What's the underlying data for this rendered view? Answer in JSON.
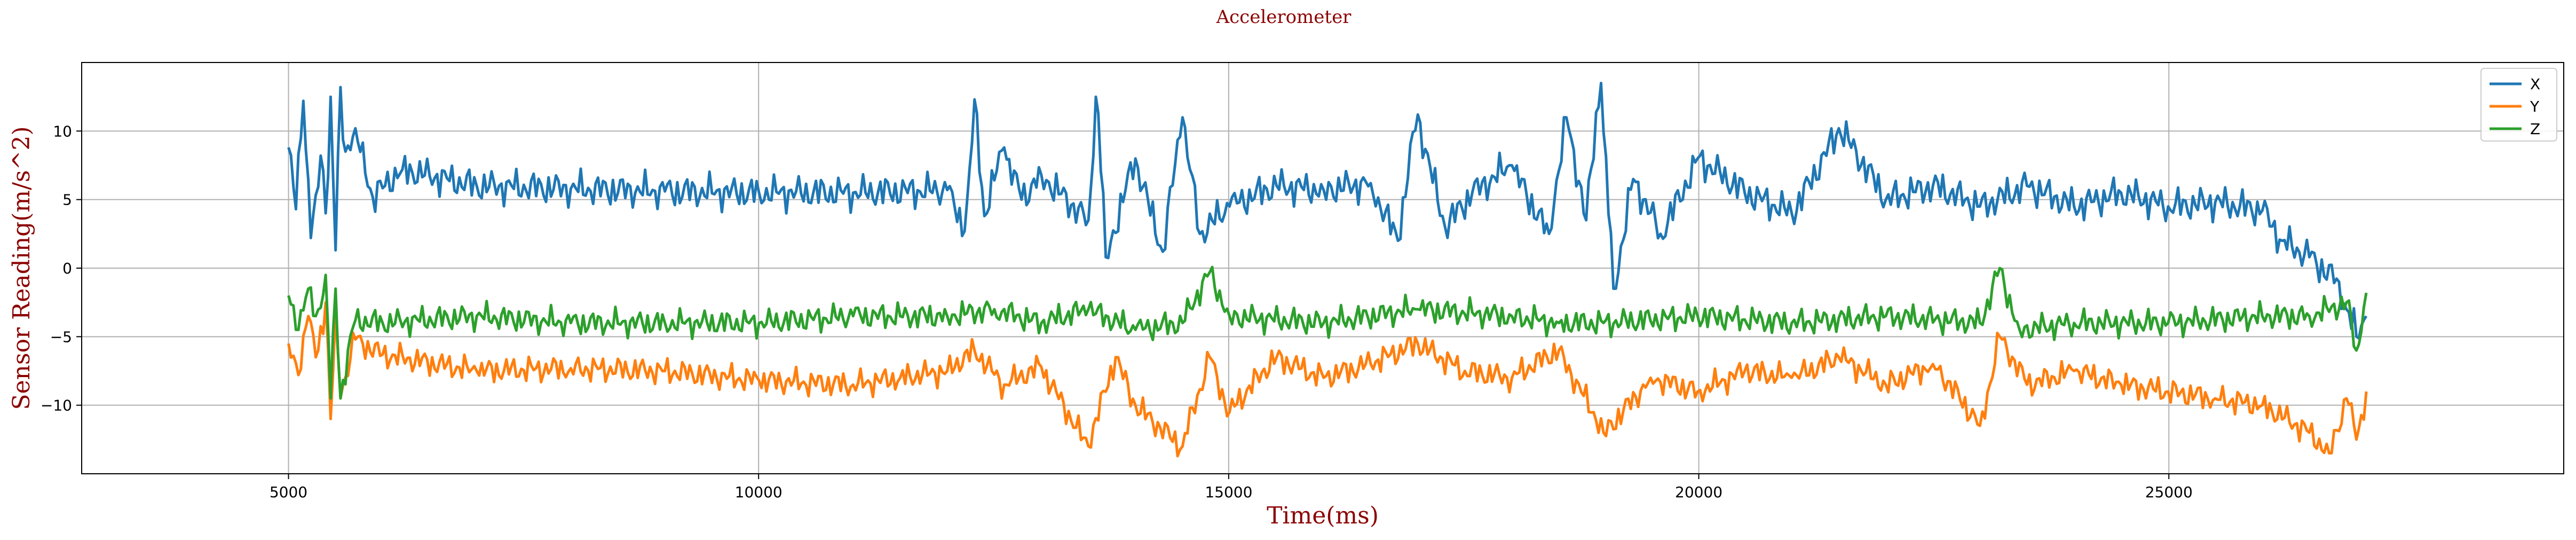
{
  "chart_data": {
    "type": "line",
    "title": "Accelerometer",
    "xlabel": "Time(ms)",
    "ylabel": "Sensor Reading(m/s^2)",
    "xlim": [
      2800,
      29200
    ],
    "ylim": [
      -15,
      15
    ],
    "xticks": [
      5000,
      10000,
      15000,
      20000,
      25000
    ],
    "yticks": [
      -10,
      -5,
      0,
      5,
      10
    ],
    "grid": true,
    "legend_position": "top-right",
    "sample_count": 840,
    "series": [
      {
        "name": "X",
        "color": "#1f77b4",
        "keypoints": [
          [
            5000,
            8.8
          ],
          [
            5080,
            4.3
          ],
          [
            5150,
            12.2
          ],
          [
            5250,
            2.2
          ],
          [
            5350,
            8.2
          ],
          [
            5400,
            4.0
          ],
          [
            5450,
            12.5
          ],
          [
            5500,
            1.3
          ],
          [
            5550,
            13.2
          ],
          [
            5600,
            8.5
          ],
          [
            5700,
            10.2
          ],
          [
            5900,
            5.2
          ],
          [
            6200,
            7.2
          ],
          [
            7000,
            6.0
          ],
          [
            8000,
            5.8
          ],
          [
            9000,
            5.6
          ],
          [
            10000,
            5.5
          ],
          [
            11000,
            5.5
          ],
          [
            12000,
            5.7
          ],
          [
            12200,
            2.7
          ],
          [
            12300,
            12.3
          ],
          [
            12400,
            3.8
          ],
          [
            12600,
            8.8
          ],
          [
            12800,
            5.0
          ],
          [
            13000,
            6.8
          ],
          [
            13500,
            3.5
          ],
          [
            13600,
            12.5
          ],
          [
            13700,
            0.8
          ],
          [
            14000,
            8.0
          ],
          [
            14300,
            1.2
          ],
          [
            14500,
            11.0
          ],
          [
            14700,
            2.5
          ],
          [
            15000,
            4.5
          ],
          [
            15500,
            6.0
          ],
          [
            16000,
            5.7
          ],
          [
            16500,
            6.2
          ],
          [
            16800,
            2.0
          ],
          [
            17000,
            11.2
          ],
          [
            17300,
            3.0
          ],
          [
            17600,
            5.5
          ],
          [
            18000,
            7.5
          ],
          [
            18400,
            2.5
          ],
          [
            18600,
            11.0
          ],
          [
            18800,
            3.5
          ],
          [
            18950,
            13.5
          ],
          [
            19100,
            -1.5
          ],
          [
            19300,
            6.5
          ],
          [
            19600,
            2.5
          ],
          [
            20000,
            8.0
          ],
          [
            20500,
            5.5
          ],
          [
            21000,
            4.0
          ],
          [
            21500,
            10.2
          ],
          [
            22000,
            5.0
          ],
          [
            22500,
            6.0
          ],
          [
            23000,
            4.5
          ],
          [
            23500,
            6.0
          ],
          [
            24000,
            4.5
          ],
          [
            24500,
            5.5
          ],
          [
            25000,
            4.5
          ],
          [
            25500,
            4.8
          ],
          [
            26000,
            4.2
          ],
          [
            26200,
            2.0
          ],
          [
            26500,
            0.8
          ],
          [
            26800,
            -1.0
          ],
          [
            26900,
            -3.0
          ],
          [
            27000,
            -5.0
          ],
          [
            27100,
            -3.5
          ]
        ]
      },
      {
        "name": "Y",
        "color": "#ff7f0e",
        "keypoints": [
          [
            5000,
            -5.5
          ],
          [
            5100,
            -7.8
          ],
          [
            5200,
            -3.5
          ],
          [
            5300,
            -6.5
          ],
          [
            5400,
            -2.5
          ],
          [
            5450,
            -11.0
          ],
          [
            5500,
            -3.0
          ],
          [
            5550,
            -9.5
          ],
          [
            5700,
            -5.2
          ],
          [
            6000,
            -6.3
          ],
          [
            7000,
            -7.5
          ],
          [
            8000,
            -7.3
          ],
          [
            9000,
            -7.5
          ],
          [
            10000,
            -8.2
          ],
          [
            11000,
            -8.5
          ],
          [
            11500,
            -8.0
          ],
          [
            12000,
            -7.5
          ],
          [
            12300,
            -6.0
          ],
          [
            12600,
            -8.5
          ],
          [
            13000,
            -7.2
          ],
          [
            13500,
            -13.0
          ],
          [
            13800,
            -6.5
          ],
          [
            14000,
            -10.0
          ],
          [
            14500,
            -13.0
          ],
          [
            14800,
            -6.5
          ],
          [
            15000,
            -10.5
          ],
          [
            15500,
            -6.5
          ],
          [
            16000,
            -8.0
          ],
          [
            16500,
            -7.0
          ],
          [
            17000,
            -5.5
          ],
          [
            17500,
            -7.5
          ],
          [
            18000,
            -8.0
          ],
          [
            18500,
            -6.0
          ],
          [
            19000,
            -12.0
          ],
          [
            19500,
            -8.0
          ],
          [
            20000,
            -9.0
          ],
          [
            20500,
            -7.5
          ],
          [
            21000,
            -8.0
          ],
          [
            21500,
            -6.5
          ],
          [
            22000,
            -8.5
          ],
          [
            22500,
            -7.0
          ],
          [
            23000,
            -11.5
          ],
          [
            23200,
            -5.0
          ],
          [
            23500,
            -8.5
          ],
          [
            24000,
            -7.5
          ],
          [
            24500,
            -8.5
          ],
          [
            25000,
            -9.0
          ],
          [
            25500,
            -9.5
          ],
          [
            26000,
            -10.0
          ],
          [
            26500,
            -12.0
          ],
          [
            26700,
            -13.5
          ],
          [
            26900,
            -9.5
          ],
          [
            27000,
            -12.5
          ],
          [
            27100,
            -9.0
          ]
        ]
      },
      {
        "name": "Z",
        "color": "#2ca02c",
        "keypoints": [
          [
            5000,
            -2.0
          ],
          [
            5100,
            -4.5
          ],
          [
            5200,
            -1.5
          ],
          [
            5300,
            -3.5
          ],
          [
            5400,
            -0.5
          ],
          [
            5450,
            -9.5
          ],
          [
            5500,
            -1.5
          ],
          [
            5550,
            -9.5
          ],
          [
            5700,
            -3.8
          ],
          [
            6000,
            -4.0
          ],
          [
            7000,
            -3.5
          ],
          [
            8000,
            -4.0
          ],
          [
            9000,
            -4.0
          ],
          [
            10000,
            -4.0
          ],
          [
            11000,
            -3.5
          ],
          [
            12000,
            -3.5
          ],
          [
            12500,
            -3.0
          ],
          [
            13000,
            -4.0
          ],
          [
            13500,
            -3.0
          ],
          [
            14000,
            -4.5
          ],
          [
            14500,
            -4.0
          ],
          [
            14800,
            -0.3
          ],
          [
            15000,
            -3.5
          ],
          [
            16000,
            -4.0
          ],
          [
            17000,
            -3.0
          ],
          [
            18000,
            -3.5
          ],
          [
            18500,
            -4.0
          ],
          [
            19000,
            -4.0
          ],
          [
            20000,
            -3.5
          ],
          [
            21000,
            -4.0
          ],
          [
            22000,
            -3.5
          ],
          [
            23000,
            -4.0
          ],
          [
            23200,
            0.0
          ],
          [
            23400,
            -4.5
          ],
          [
            24000,
            -4.0
          ],
          [
            25000,
            -4.0
          ],
          [
            26000,
            -3.5
          ],
          [
            26500,
            -3.5
          ],
          [
            26900,
            -2.5
          ],
          [
            27000,
            -6.0
          ],
          [
            27100,
            -1.8
          ]
        ]
      }
    ]
  }
}
